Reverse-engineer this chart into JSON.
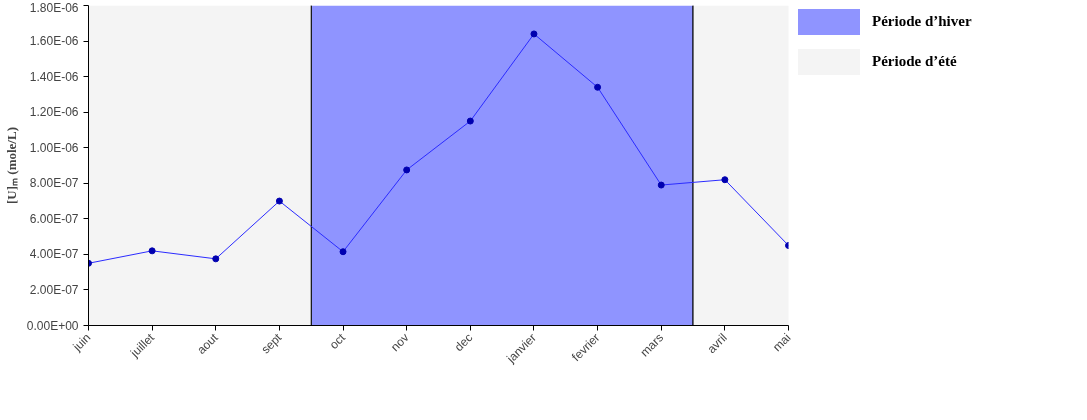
{
  "chart_data": {
    "type": "line",
    "ylabel": "[U]ₘ (mole/L)",
    "categories": [
      "juin",
      "juillet",
      "aout",
      "sept",
      "oct",
      "nov",
      "dec",
      "janvier",
      "fevrier",
      "mars",
      "avril",
      "mai"
    ],
    "series": [
      {
        "color": "#2b2bff",
        "values": [
          3.5e-07,
          4.2e-07,
          3.75e-07,
          7e-07,
          4.15e-07,
          8.75e-07,
          1.15e-06,
          1.64e-06,
          1.34e-06,
          7.9e-07,
          8.2e-07,
          4.5e-07
        ]
      }
    ],
    "marker": "circle",
    "line_style": "solid",
    "ylim": [
      0,
      1.8e-06
    ],
    "yticks": [
      {
        "value": 0,
        "label": "0.00E+00"
      },
      {
        "value": 2e-07,
        "label": "2.00E-07"
      },
      {
        "value": 4e-07,
        "label": "4.00E-07"
      },
      {
        "value": 6e-07,
        "label": "6.00E-07"
      },
      {
        "value": 8e-07,
        "label": "8.00E-07"
      },
      {
        "value": 1e-06,
        "label": "1.00E-06"
      },
      {
        "value": 1.2e-06,
        "label": "1.20E-06"
      },
      {
        "value": 1.4e-06,
        "label": "1.40E-06"
      },
      {
        "value": 1.6e-06,
        "label": "1.60E-06"
      },
      {
        "value": 1.8e-06,
        "label": "1.80E-06"
      }
    ],
    "annotations": [
      "Période d’hiver",
      "Période d’été"
    ],
    "bands": [
      {
        "axis": "x",
        "from": "oct",
        "to": "mars",
        "color": "#8f94ff"
      },
      {
        "axis": "x",
        "from": "juin",
        "to": "sept",
        "color": "#f4f4f4"
      },
      {
        "axis": "x",
        "from": "avril",
        "to": "mai",
        "color": "#f4f4f4"
      }
    ]
  }
}
